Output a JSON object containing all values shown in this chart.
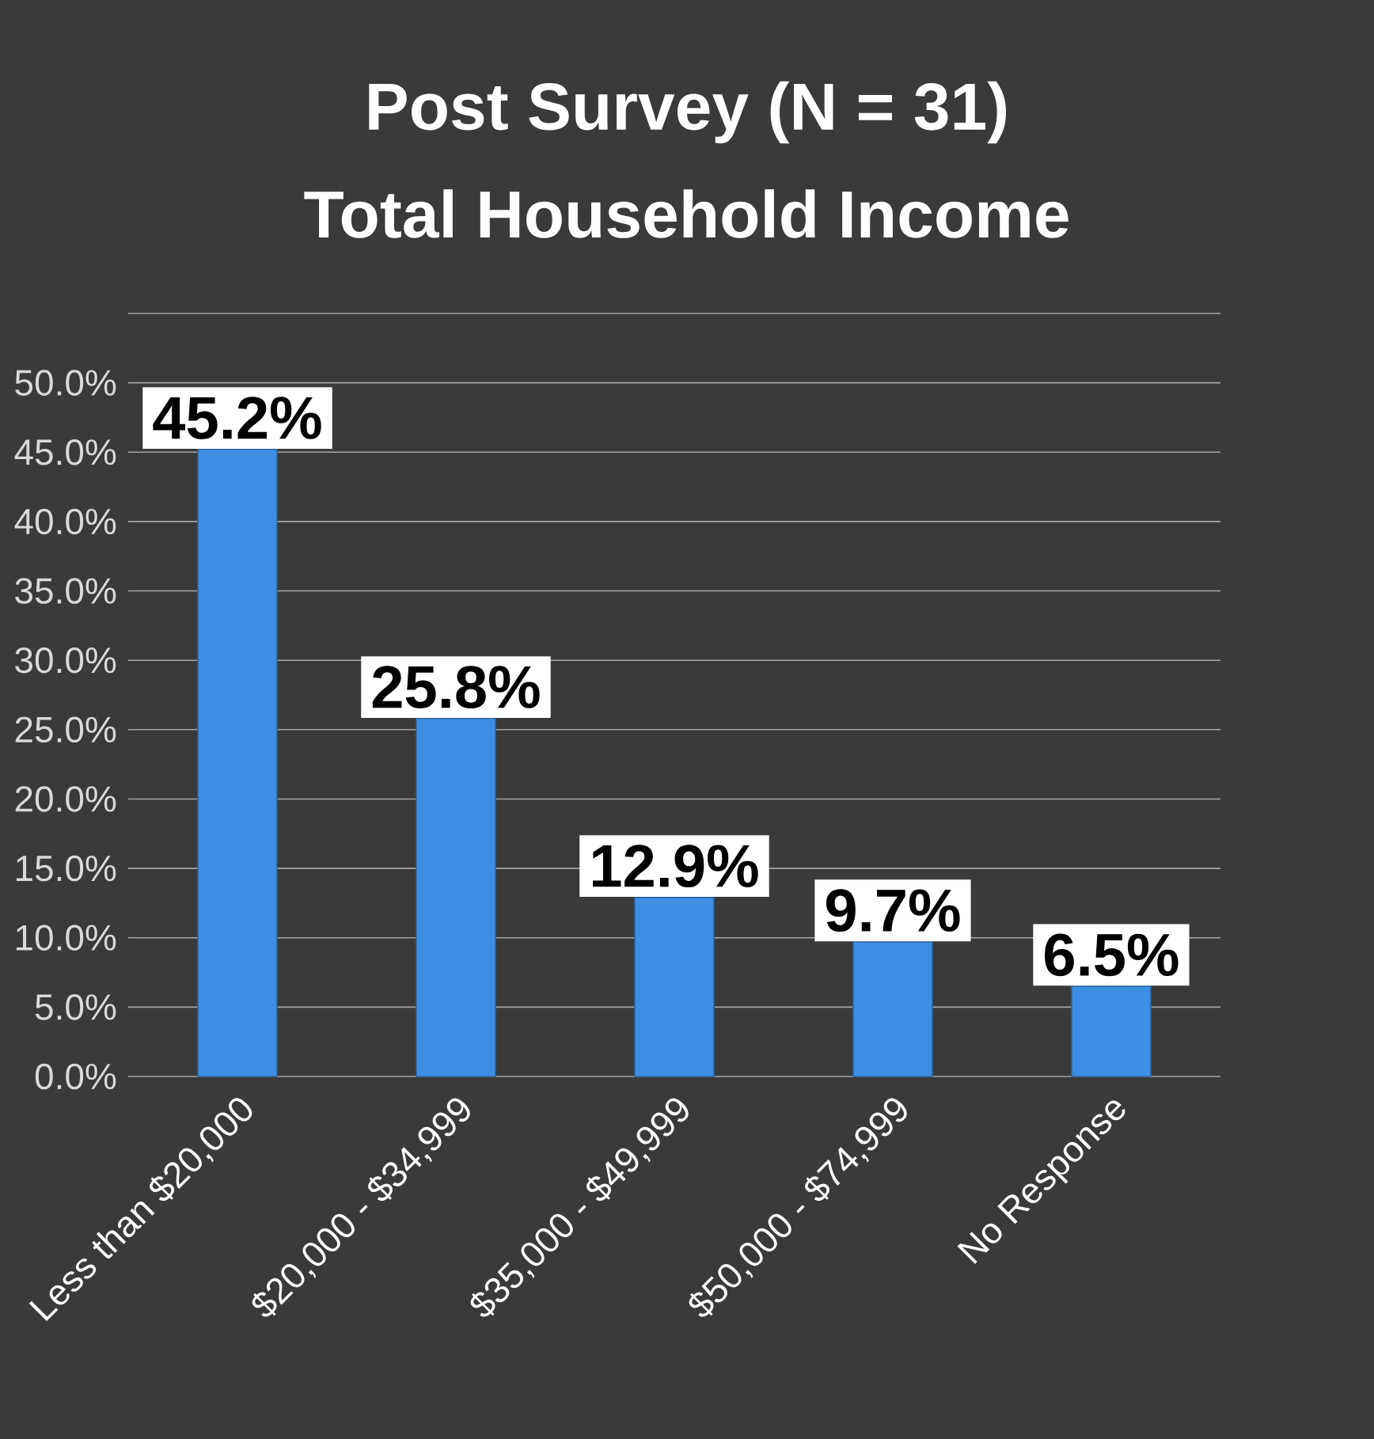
{
  "chart_data": {
    "type": "bar",
    "title": "Post Survey (N = 31)",
    "subtitle": "Total Household Income",
    "categories": [
      "Less than $20,000",
      "$20,000 - $34,999",
      "$35,000 - $49,999",
      "$50,000 - $74,999",
      "No Response"
    ],
    "values": [
      45.2,
      25.8,
      12.9,
      9.7,
      6.5
    ],
    "value_labels": [
      "45.2%",
      "25.8%",
      "12.9%",
      "9.7%",
      "6.5%"
    ],
    "color": "#3d8fe3",
    "ylim": [
      0,
      55
    ],
    "yticks": [
      {
        "value": 0,
        "label": "0.0%"
      },
      {
        "value": 5,
        "label": "5.0%"
      },
      {
        "value": 10,
        "label": "10.0%"
      },
      {
        "value": 15,
        "label": "15.0%"
      },
      {
        "value": 20,
        "label": "20.0%"
      },
      {
        "value": 25,
        "label": "25.0%"
      },
      {
        "value": 30,
        "label": "30.0%"
      },
      {
        "value": 35,
        "label": "35.0%"
      },
      {
        "value": 40,
        "label": "40.0%"
      },
      {
        "value": 45,
        "label": "45.0%"
      },
      {
        "value": 50,
        "label": "50.0%"
      },
      {
        "value": 55,
        "label": null
      }
    ],
    "grid": "y"
  }
}
